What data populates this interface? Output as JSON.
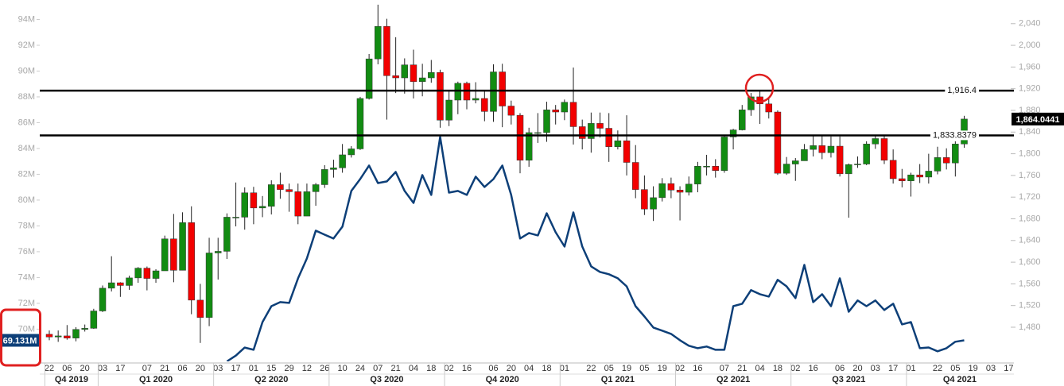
{
  "chart_data": {
    "type": "candlestick",
    "categories": [
      "22",
      null,
      "06",
      null,
      "20",
      null,
      "03",
      null,
      "17",
      null,
      null,
      "07",
      null,
      "21",
      null,
      "06",
      null,
      "20",
      null,
      "03",
      null,
      "17",
      null,
      "01",
      null,
      "15",
      null,
      "29",
      null,
      "12",
      null,
      "26",
      null,
      "10",
      null,
      "24",
      null,
      "07",
      null,
      "21",
      null,
      "04",
      null,
      "18",
      null,
      "02",
      null,
      "16",
      null,
      null,
      "06",
      null,
      "20",
      null,
      "04",
      null,
      "18",
      null,
      "01",
      null,
      null,
      "22",
      null,
      "05",
      null,
      "19",
      null,
      "05",
      null,
      "19",
      null,
      "02",
      null,
      "16",
      null,
      null,
      "07",
      null,
      "21",
      null,
      "04",
      null,
      "18",
      null,
      "02",
      null,
      "16",
      null,
      null,
      "06",
      null,
      "20",
      null,
      "03",
      null,
      "17",
      null,
      "01",
      null,
      null,
      "22",
      null,
      "05",
      null,
      "19",
      null,
      "03",
      null,
      "17"
    ],
    "quarters": [
      "Q4 2019",
      "Q1 2020",
      "Q2 2020",
      "Q3 2020",
      "Q4 2020",
      "Q1 2021",
      "Q2 2021",
      "Q3 2021",
      "Q4 2021"
    ],
    "candles": {
      "axis": "y2",
      "up_color": "#128c12",
      "down_color": "#f20000",
      "last_label": "1,864.0441",
      "open": [
        1467,
        1462,
        1464,
        1460,
        1476,
        1478,
        1510,
        1552,
        1562,
        1557,
        1571,
        1589,
        1570,
        1584,
        1643,
        1585,
        1673,
        1530,
        1498,
        1617,
        1620,
        1683,
        1683,
        1728,
        1700,
        1703,
        1743,
        1734,
        1730,
        1685,
        1730,
        1743,
        1771,
        1774,
        1798,
        1809,
        1902,
        1975,
        2035,
        1944,
        1940,
        1964,
        1933,
        1940,
        1950,
        1862,
        1899,
        1930,
        1899,
        1902,
        1878,
        1951,
        1888,
        1871,
        1788,
        1839,
        1839,
        1881,
        1877,
        1895,
        1850,
        1828,
        1856,
        1847,
        1813,
        1824,
        1784,
        1734,
        1698,
        1719,
        1745,
        1733,
        1729,
        1744,
        1777,
        1777,
        1769,
        1831,
        1844,
        1881,
        1905,
        1892,
        1877,
        1764,
        1781,
        1787,
        1808,
        1815,
        1802,
        1814,
        1763,
        1780,
        1781,
        1818,
        1828,
        1788,
        1754,
        1750,
        1761,
        1757,
        1768,
        1793,
        1783,
        1818,
        null,
        null,
        null,
        null,
        null
      ],
      "high": [
        1474,
        1474,
        1484,
        1480,
        1485,
        1514,
        1557,
        1611,
        1563,
        1575,
        1591,
        1592,
        1587,
        1649,
        1689,
        1692,
        1703,
        1560,
        1645,
        1645,
        1690,
        1747,
        1738,
        1739,
        1722,
        1751,
        1765,
        1745,
        1745,
        1745,
        1746,
        1779,
        1789,
        1818,
        1814,
        1905,
        1984,
        2075,
        2049,
        2015,
        1976,
        1992,
        1966,
        1973,
        1955,
        1917,
        1933,
        1933,
        1932,
        1916,
        1965,
        1966,
        1898,
        1875,
        1848,
        1875,
        1896,
        1890,
        1900,
        1959,
        1863,
        1876,
        1876,
        1875,
        1843,
        1871,
        1816,
        1760,
        1740,
        1755,
        1756,
        1740,
        1758,
        1785,
        1798,
        1790,
        1834,
        1846,
        1890,
        1912,
        1916,
        1903,
        1880,
        1794,
        1792,
        1818,
        1834,
        1834,
        1832,
        1832,
        1782,
        1795,
        1823,
        1834,
        1834,
        1808,
        1772,
        1765,
        1781,
        1800,
        1813,
        1810,
        1823,
        1870,
        null,
        null,
        null,
        null,
        null
      ],
      "low": [
        1456,
        1453,
        1457,
        1454,
        1472,
        1477,
        1508,
        1546,
        1536,
        1549,
        1562,
        1548,
        1562,
        1584,
        1563,
        1585,
        1504,
        1451,
        1482,
        1568,
        1606,
        1666,
        1660,
        1670,
        1683,
        1688,
        1717,
        1693,
        1670,
        1685,
        1704,
        1737,
        1756,
        1765,
        1793,
        1807,
        1900,
        1965,
        1863,
        1912,
        1911,
        1902,
        1906,
        1931,
        1848,
        1851,
        1873,
        1882,
        1893,
        1860,
        1859,
        1849,
        1854,
        1764,
        1776,
        1820,
        1822,
        1854,
        1862,
        1817,
        1808,
        1802,
        1830,
        1785,
        1808,
        1760,
        1718,
        1687,
        1676,
        1712,
        1718,
        1677,
        1723,
        1729,
        1760,
        1756,
        1765,
        1808,
        1843,
        1870,
        1855,
        1865,
        1761,
        1761,
        1750,
        1787,
        1795,
        1790,
        1793,
        1758,
        1682,
        1774,
        1779,
        1809,
        1781,
        1745,
        1738,
        1721,
        1746,
        1745,
        1762,
        1771,
        1758,
        1811,
        null,
        null,
        null,
        null,
        null
      ],
      "close": [
        1462,
        1464,
        1460,
        1476,
        1478,
        1510,
        1552,
        1562,
        1557,
        1571,
        1589,
        1570,
        1584,
        1643,
        1585,
        1673,
        1530,
        1498,
        1617,
        1620,
        1683,
        1683,
        1728,
        1700,
        1703,
        1743,
        1734,
        1730,
        1685,
        1730,
        1743,
        1771,
        1774,
        1798,
        1809,
        1902,
        1975,
        2035,
        1944,
        1940,
        1964,
        1933,
        1940,
        1950,
        1862,
        1899,
        1930,
        1899,
        1902,
        1878,
        1951,
        1888,
        1871,
        1788,
        1839,
        1839,
        1881,
        1877,
        1895,
        1850,
        1828,
        1856,
        1847,
        1813,
        1824,
        1784,
        1734,
        1698,
        1719,
        1745,
        1733,
        1729,
        1744,
        1777,
        1777,
        1769,
        1831,
        1844,
        1881,
        1905,
        1892,
        1877,
        1764,
        1781,
        1787,
        1808,
        1815,
        1802,
        1814,
        1763,
        1780,
        1781,
        1818,
        1828,
        1788,
        1754,
        1750,
        1761,
        1757,
        1768,
        1793,
        1783,
        1818,
        1864.0441,
        null,
        null,
        null,
        null,
        null
      ]
    },
    "series": [
      {
        "type": "line",
        "color": "#0d3f78",
        "last_label": "69.131M",
        "values": [
          null,
          null,
          null,
          null,
          null,
          null,
          null,
          null,
          null,
          null,
          null,
          null,
          null,
          null,
          null,
          null,
          null,
          null,
          null,
          null,
          67.5,
          67.95,
          68.57,
          68.4,
          70.55,
          71.78,
          72.09,
          72.03,
          73.94,
          75.48,
          77.63,
          77.32,
          77.02,
          77.94,
          80.71,
          81.63,
          82.68,
          81.32,
          81.45,
          82.18,
          80.71,
          79.78,
          81.94,
          80.4,
          84.89,
          80.58,
          80.71,
          80.4,
          81.82,
          81.02,
          81.63,
          82.68,
          80.4,
          77.02,
          77.45,
          77.26,
          78.98,
          77.51,
          76.4,
          79.05,
          76.4,
          74.86,
          74.43,
          74.25,
          73.94,
          73.32,
          71.78,
          70.98,
          70.12,
          69.88,
          69.63,
          69.14,
          68.71,
          68.52,
          68.65,
          68.4,
          68.4,
          71.78,
          71.97,
          73.02,
          72.71,
          72.52,
          73.82,
          73.32,
          72.4,
          74.98,
          72.09,
          72.71,
          71.78,
          73.94,
          71.35,
          72.22,
          71.78,
          72.22,
          71.48,
          71.97,
          70.37,
          70.55,
          68.52,
          68.58,
          68.28,
          68.52,
          69.02,
          69.131,
          null,
          null,
          null,
          null,
          null
        ]
      }
    ],
    "ylim": [
      67.5,
      95.2
    ],
    "yticks": [
      {
        "value": 70,
        "label": "70M"
      },
      {
        "value": 72,
        "label": "72M"
      },
      {
        "value": 74,
        "label": "74M"
      },
      {
        "value": 76,
        "label": "76M"
      },
      {
        "value": 78,
        "label": "78M"
      },
      {
        "value": 80,
        "label": "80M"
      },
      {
        "value": 82,
        "label": "82M"
      },
      {
        "value": 84,
        "label": "84M"
      },
      {
        "value": 86,
        "label": "86M"
      },
      {
        "value": 88,
        "label": "88M"
      },
      {
        "value": 90,
        "label": "90M"
      },
      {
        "value": 92,
        "label": "92M"
      },
      {
        "value": 94,
        "label": "94M"
      }
    ],
    "y2lim": [
      1417,
      2076.3
    ],
    "y2ticks": [
      {
        "value": 1480,
        "label": "1,480"
      },
      {
        "value": 1520,
        "label": "1,520"
      },
      {
        "value": 1560,
        "label": "1,560"
      },
      {
        "value": 1600,
        "label": "1,600"
      },
      {
        "value": 1640,
        "label": "1,640"
      },
      {
        "value": 1680,
        "label": "1,680"
      },
      {
        "value": 1720,
        "label": "1,720"
      },
      {
        "value": 1760,
        "label": "1,760"
      },
      {
        "value": 1800,
        "label": "1,800"
      },
      {
        "value": 1840,
        "label": "1,840"
      },
      {
        "value": 1880,
        "label": "1,880"
      },
      {
        "value": 1920,
        "label": "1,920"
      },
      {
        "value": 1960,
        "label": "1,960"
      },
      {
        "value": 2000,
        "label": "2,000"
      },
      {
        "value": 2040,
        "label": "2,040"
      }
    ],
    "hlines": [
      {
        "value": 1916.4,
        "label": "1,916.4"
      },
      {
        "value": 1833.8379,
        "label": "1,833.8379"
      }
    ]
  }
}
